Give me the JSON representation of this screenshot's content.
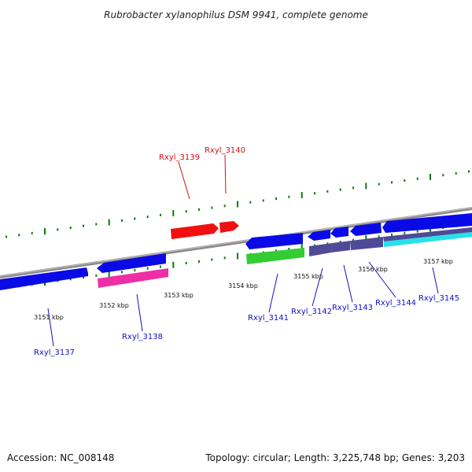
{
  "title": "Rubrobacter xylanophilus DSM 9941, complete genome",
  "footer": {
    "accession": "Accession: NC_008148",
    "summary": "Topology: circular; Length: 3,225,748 bp; Genes: 3,203"
  },
  "colors": {
    "blue": "#0a0ae6",
    "red": "#f01010",
    "magenta": "#ee2ea6",
    "green": "#33cc33",
    "slate": "#4e4a95",
    "cyan": "#27e1ea",
    "label_blue": "#1010c8",
    "label_red": "#cc1010",
    "tick_green": "#0e7a0e",
    "backbone": "#8a8a8a"
  },
  "scale_labels": [
    "3151 kbp",
    "3152 kbp",
    "3153 kbp",
    "3154 kbp",
    "3155 kbp",
    "3156 kbp",
    "3157 kbp"
  ],
  "gene_labels": [
    {
      "name": "Rxyl_3137",
      "color": "label_blue"
    },
    {
      "name": "Rxyl_3138",
      "color": "label_blue"
    },
    {
      "name": "Rxyl_3139",
      "color": "label_red"
    },
    {
      "name": "Rxyl_3140",
      "color": "label_red"
    },
    {
      "name": "Rxyl_3141",
      "color": "label_blue"
    },
    {
      "name": "Rxyl_3142",
      "color": "label_blue"
    },
    {
      "name": "Rxyl_3143",
      "color": "label_blue"
    },
    {
      "name": "Rxyl_3144",
      "color": "label_blue"
    },
    {
      "name": "Rxyl_3145",
      "color": "label_blue"
    }
  ]
}
